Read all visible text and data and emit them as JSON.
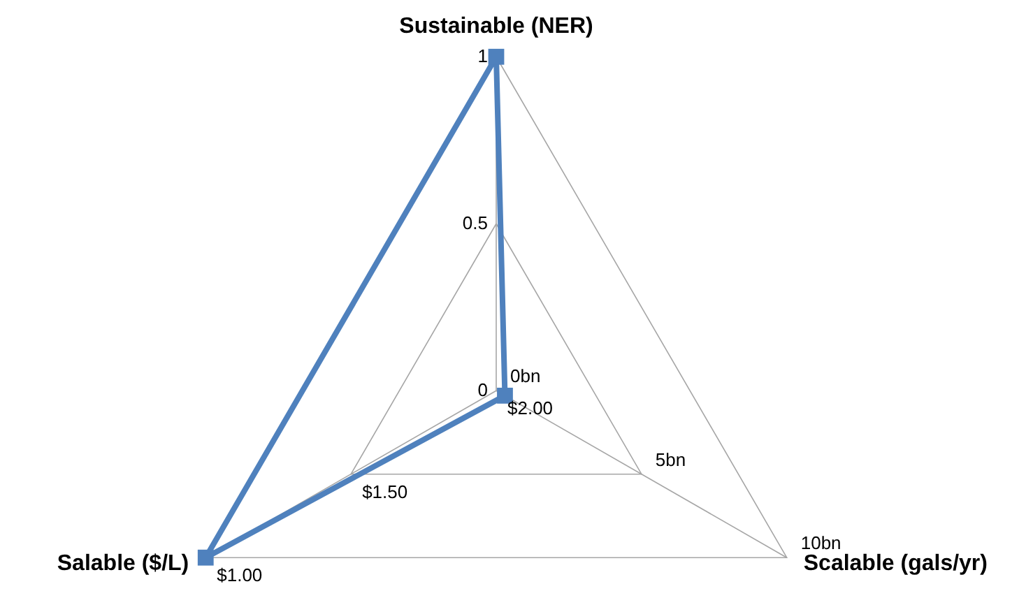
{
  "chart_data": {
    "type": "radar",
    "categories": [
      "Sustainable (NER)",
      "Scalable (gals/yr)",
      "Salable ($/L)"
    ],
    "series": [
      {
        "color": "#4f81bd",
        "values": [
          1,
          0.03,
          1
        ]
      }
    ],
    "ylim": [
      0,
      1
    ],
    "yticks": [
      0,
      0.5,
      1
    ],
    "annotations": [
      "0bn",
      "5bn",
      "10bn",
      "$2.00",
      "$1.50",
      "$1.00"
    ],
    "grid": true,
    "marker": "square",
    "line_style": "solid"
  }
}
